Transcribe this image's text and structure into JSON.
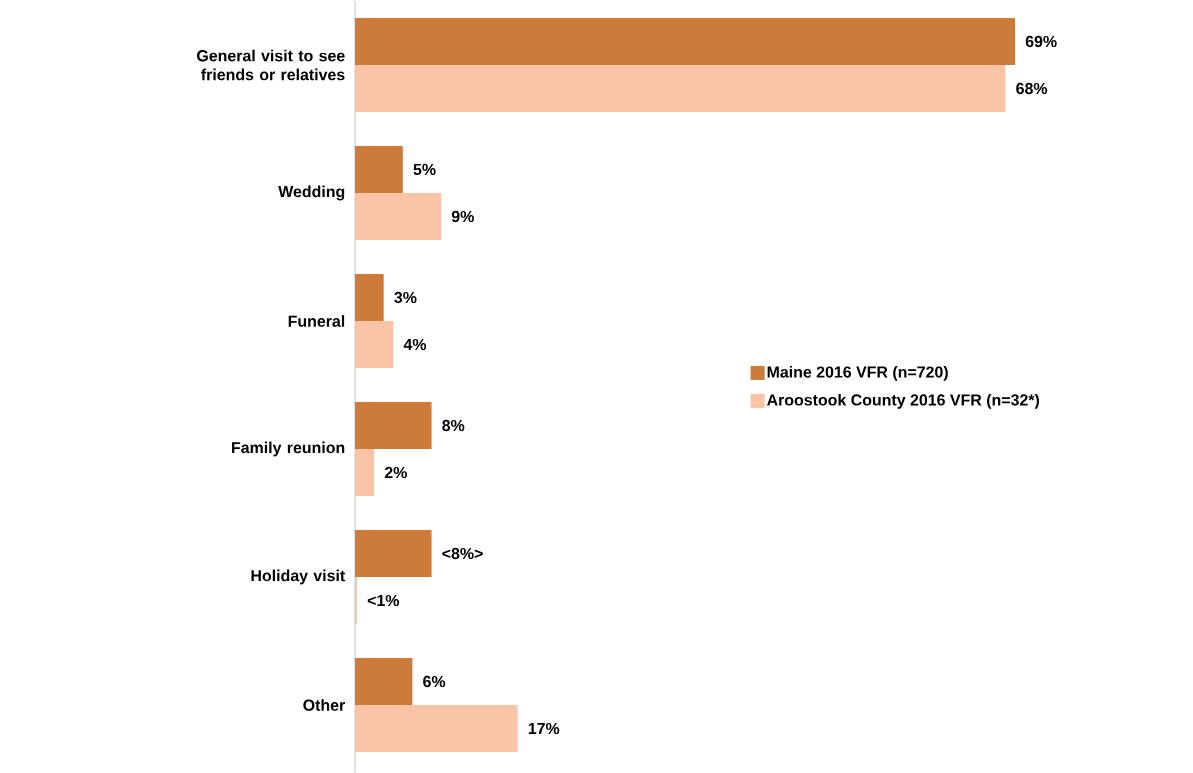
{
  "chart_data": {
    "type": "bar",
    "orientation": "horizontal",
    "legend": "right",
    "categories": [
      "General visit to see friends or relatives",
      "Wedding",
      "Funeral",
      "Family reunion",
      "Holiday visit",
      "Other"
    ],
    "series": [
      {
        "name": "Maine 2016 VFR (n=720)",
        "color": "#cd7b3a",
        "values": [
          69,
          5,
          3,
          8,
          8,
          6
        ],
        "value_labels": [
          "69%",
          "5%",
          "3%",
          "8%",
          "<8%>",
          "6%"
        ]
      },
      {
        "name": "Aroostook County 2016 VFR (n=32*)",
        "color": "#f9c3a6",
        "values": [
          68,
          9,
          4,
          2,
          0.2,
          17
        ],
        "value_labels": [
          "68%",
          "9%",
          "4%",
          "2%",
          "<1%",
          "17%"
        ]
      }
    ]
  }
}
